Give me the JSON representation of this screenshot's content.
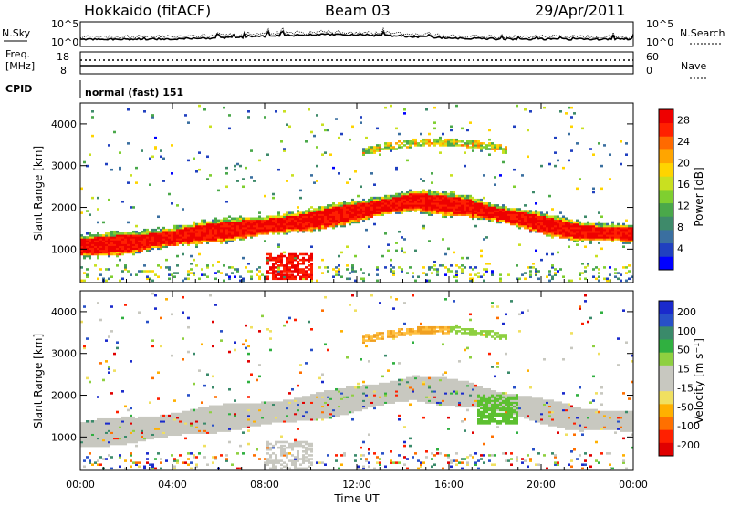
{
  "header": {
    "station": "Hokkaido (fitACF)",
    "beam": "Beam 03",
    "date": "29/Apr/2011"
  },
  "side_labels": {
    "nsky": "N.Sky",
    "nsearch": "N.Search",
    "freq_line1": "Freq.",
    "freq_line2": "[MHz]",
    "nave": "Nave",
    "cpid": "CPID",
    "cpid_value": "normal (fast) 151"
  },
  "noise_panel": {
    "left_ticks": [
      "10^5",
      "10^0"
    ],
    "right_ticks": [
      "10^5",
      "10^0"
    ]
  },
  "freq_panel": {
    "left_ticks": [
      "18",
      "8"
    ],
    "right_ticks": [
      "60",
      "0"
    ]
  },
  "chart_data": [
    {
      "type": "heatmap",
      "parameter": "power",
      "ylabel": "Slant Range [km]",
      "xlabel": "Time UT",
      "x_ticks": [
        "00:00",
        "04:00",
        "08:00",
        "12:00",
        "16:00",
        "20:00",
        "00:00"
      ],
      "y_ticks": [
        1000,
        2000,
        3000,
        4000
      ],
      "ylim": [
        200,
        4500
      ],
      "xlim_hours": [
        0,
        24
      ],
      "colorbar": {
        "label": "Power [dB]",
        "ticks": [
          4,
          8,
          12,
          16,
          20,
          24,
          28
        ],
        "range": [
          0,
          30
        ],
        "colors": [
          "#0000ff",
          "#2040c0",
          "#3a6fa0",
          "#3e8a6a",
          "#4aa84a",
          "#7fcf30",
          "#c9e020",
          "#ffd400",
          "#ffa500",
          "#ff6a00",
          "#ff2000",
          "#ee0000"
        ]
      },
      "features": [
        {
          "name": "main-band",
          "time_range": [
            0,
            24
          ],
          "range_km_center": [
            1050,
            1150,
            1350,
            1500,
            1650,
            1900,
            2150,
            2000,
            1700,
            1400,
            1350
          ],
          "power_db": 28
        },
        {
          "name": "upper-band",
          "time_range": [
            12,
            19
          ],
          "range_km_center": [
            3300,
            3500,
            3400,
            3200
          ],
          "power_db": 20
        }
      ]
    },
    {
      "type": "heatmap",
      "parameter": "velocity",
      "ylabel": "Slant Range [km]",
      "xlabel": "Time UT",
      "x_ticks": [
        "00:00",
        "04:00",
        "08:00",
        "12:00",
        "16:00",
        "20:00",
        "00:00"
      ],
      "y_ticks": [
        1000,
        2000,
        3000,
        4000
      ],
      "ylim": [
        200,
        4500
      ],
      "xlim_hours": [
        0,
        24
      ],
      "colorbar": {
        "label": "Velocity [m s^-1]",
        "ticks": [
          200,
          100,
          50,
          15,
          -15,
          -50,
          -100,
          -200
        ],
        "range": [
          -250,
          250
        ],
        "colors": [
          "#1a2acc",
          "#2850c8",
          "#3a8a6a",
          "#30b040",
          "#8ed040",
          "#c8c8c0",
          "#c8c8c0",
          "#f0e060",
          "#ffb000",
          "#ff7000",
          "#ff2000",
          "#e00000"
        ]
      },
      "features": [
        {
          "name": "ground-scatter-band",
          "time_range": [
            0,
            24
          ],
          "velocity_ms": 0
        },
        {
          "name": "upper-band",
          "time_range": [
            12,
            16
          ],
          "velocity_ms": -50
        },
        {
          "name": "green-patch",
          "time_range": [
            17,
            19
          ],
          "velocity_ms": 50
        }
      ]
    }
  ]
}
